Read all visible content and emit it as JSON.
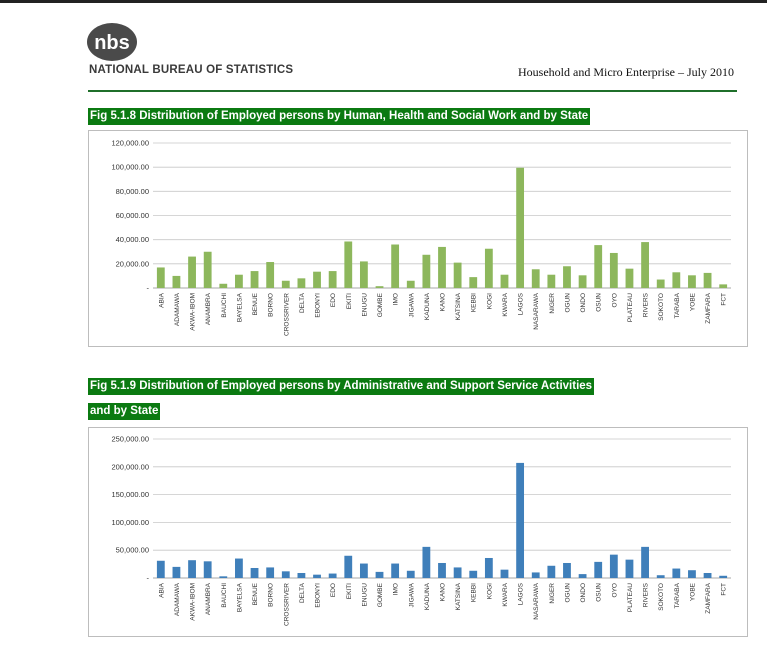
{
  "header": {
    "organization": "NATIONAL BUREAU OF STATISTICS",
    "logo_text": "nbs",
    "document_title": "Household and Micro Enterprise – July 2010"
  },
  "figures": [
    {
      "title_lines": [
        "Fig 5.1.8 Distribution of Employed persons by Human, Health and Social Work and by State"
      ]
    },
    {
      "title_lines": [
        "Fig 5.1.9 Distribution of Employed persons by Administrative and Support Service Activities",
        "and by State"
      ]
    }
  ],
  "chart_data": [
    {
      "type": "bar",
      "color": "#8db75c",
      "categories": [
        "ABIA",
        "ADAMAWA",
        "AKWA-IBOM",
        "ANAMBRA",
        "BAUCHI",
        "BAYELSA",
        "BENUE",
        "BORNO",
        "CROSSRIVER",
        "DELTA",
        "EBONYI",
        "EDO",
        "EKITI",
        "ENUGU",
        "GOMBE",
        "IMO",
        "JIGAWA",
        "KADUNA",
        "KANO",
        "KATSINA",
        "KEBBI",
        "KOGI",
        "KWARA",
        "LAGOS",
        "NASARAWA",
        "NIGER",
        "OGUN",
        "ONDO",
        "OSUN",
        "OYO",
        "PLATEAU",
        "RIVERS",
        "SOKOTO",
        "TARABA",
        "YOBE",
        "ZAMFARA",
        "FCT"
      ],
      "values": [
        17000,
        10000,
        26000,
        30000,
        3500,
        11000,
        14000,
        21500,
        6000,
        8000,
        13500,
        14000,
        38500,
        22000,
        1500,
        36000,
        6000,
        27500,
        34000,
        21000,
        9000,
        32500,
        11000,
        99500,
        15500,
        11000,
        18000,
        10500,
        35500,
        29000,
        16000,
        38000,
        7000,
        13000,
        10500,
        12500,
        3000
      ],
      "y_ticks": [
        "-",
        "20,000.00",
        "40,000.00",
        "60,000.00",
        "80,000.00",
        "100,000.00",
        "120,000.00"
      ],
      "ylim": [
        0,
        120000
      ],
      "grid": true
    },
    {
      "type": "bar",
      "color": "#3f7fba",
      "categories": [
        "ABIA",
        "ADAMAWA",
        "AKWA-IBOM",
        "ANAMBRA",
        "BAUCHI",
        "BAYELSA",
        "BENUE",
        "BORNO",
        "CROSSRIVER",
        "DELTA",
        "EBONYI",
        "EDO",
        "EKITI",
        "ENUGU",
        "GOMBE",
        "IMO",
        "JIGAWA",
        "KADUNA",
        "KANO",
        "KATSINA",
        "KEBBI",
        "KOGI",
        "KWARA",
        "LAGOS",
        "NASARAWA",
        "NIGER",
        "OGUN",
        "ONDO",
        "OSUN",
        "OYO",
        "PLATEAU",
        "RIVERS",
        "SOKOTO",
        "TARABA",
        "YOBE",
        "ZAMFARA",
        "FCT"
      ],
      "values": [
        31000,
        20000,
        32000,
        30000,
        3000,
        35000,
        18000,
        19000,
        12000,
        9000,
        6000,
        8000,
        40000,
        26000,
        11000,
        26000,
        13000,
        56000,
        27000,
        19000,
        13000,
        36000,
        15000,
        207000,
        10000,
        22000,
        27000,
        7000,
        29000,
        42000,
        33000,
        56000,
        5000,
        17000,
        14000,
        9000,
        4000
      ],
      "y_ticks": [
        "-",
        "50,000.00",
        "100,000.00",
        "150,000.00",
        "200,000.00",
        "250,000.00"
      ],
      "ylim": [
        0,
        250000
      ],
      "grid": true
    }
  ]
}
